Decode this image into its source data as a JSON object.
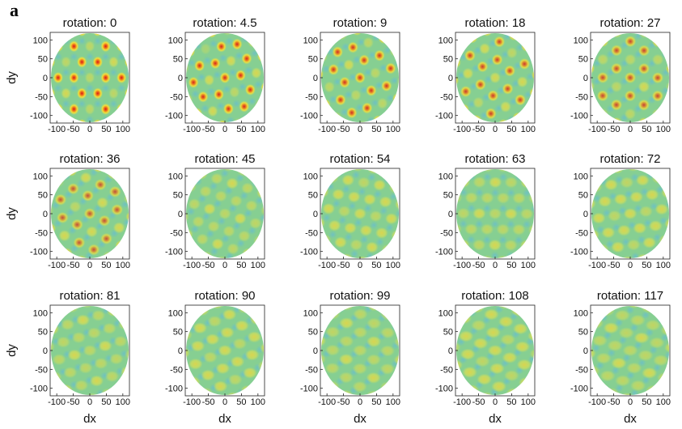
{
  "panel_label": "a",
  "chart_data": [
    {
      "type": "heatmap",
      "title": "rotation: 0",
      "ylabel": "dy",
      "xlim": [
        -120,
        120
      ],
      "ylim": [
        -120,
        120
      ],
      "xticks": [
        -100,
        -50,
        0,
        50,
        100
      ],
      "yticks": [
        -100,
        -50,
        0,
        50,
        100
      ]
    },
    {
      "type": "heatmap",
      "title": "rotation: 4.5",
      "xlim": [
        -120,
        120
      ],
      "ylim": [
        -120,
        120
      ],
      "xticks": [
        -100,
        -50,
        0,
        50,
        100
      ],
      "yticks": [
        -100,
        -50,
        0,
        50,
        100
      ]
    },
    {
      "type": "heatmap",
      "title": "rotation: 9",
      "xlim": [
        -120,
        120
      ],
      "ylim": [
        -120,
        120
      ],
      "xticks": [
        -100,
        -50,
        0,
        50,
        100
      ],
      "yticks": [
        -100,
        -50,
        0,
        50,
        100
      ]
    },
    {
      "type": "heatmap",
      "title": "rotation: 18",
      "xlim": [
        -120,
        120
      ],
      "ylim": [
        -120,
        120
      ],
      "xticks": [
        -100,
        -50,
        0,
        50,
        100
      ],
      "yticks": [
        -100,
        -50,
        0,
        50,
        100
      ]
    },
    {
      "type": "heatmap",
      "title": "rotation: 27",
      "xlim": [
        -120,
        120
      ],
      "ylim": [
        -120,
        120
      ],
      "xticks": [
        -100,
        -50,
        0,
        50,
        100
      ],
      "yticks": [
        -100,
        -50,
        0,
        50,
        100
      ]
    },
    {
      "type": "heatmap",
      "title": "rotation: 36",
      "ylabel": "dy",
      "xlim": [
        -120,
        120
      ],
      "ylim": [
        -120,
        120
      ],
      "xticks": [
        -100,
        -50,
        0,
        50,
        100
      ],
      "yticks": [
        -100,
        -50,
        0,
        50,
        100
      ]
    },
    {
      "type": "heatmap",
      "title": "rotation: 45",
      "xlim": [
        -120,
        120
      ],
      "ylim": [
        -120,
        120
      ],
      "xticks": [
        -100,
        -50,
        0,
        50,
        100
      ],
      "yticks": [
        -100,
        -50,
        0,
        50,
        100
      ]
    },
    {
      "type": "heatmap",
      "title": "rotation: 54",
      "xlim": [
        -120,
        120
      ],
      "ylim": [
        -120,
        120
      ],
      "xticks": [
        -100,
        -50,
        0,
        50,
        100
      ],
      "yticks": [
        -100,
        -50,
        0,
        50,
        100
      ]
    },
    {
      "type": "heatmap",
      "title": "rotation: 63",
      "xlim": [
        -120,
        120
      ],
      "ylim": [
        -120,
        120
      ],
      "xticks": [
        -100,
        -50,
        0,
        50,
        100
      ],
      "yticks": [
        -100,
        -50,
        0,
        50,
        100
      ]
    },
    {
      "type": "heatmap",
      "title": "rotation: 72",
      "xlim": [
        -120,
        120
      ],
      "ylim": [
        -120,
        120
      ],
      "xticks": [
        -100,
        -50,
        0,
        50,
        100
      ],
      "yticks": [
        -100,
        -50,
        0,
        50,
        100
      ]
    },
    {
      "type": "heatmap",
      "title": "rotation: 81",
      "ylabel": "dy",
      "xlabel": "dx",
      "xlim": [
        -120,
        120
      ],
      "ylim": [
        -120,
        120
      ],
      "xticks": [
        -100,
        -50,
        0,
        50,
        100
      ],
      "yticks": [
        -100,
        -50,
        0,
        50,
        100
      ]
    },
    {
      "type": "heatmap",
      "title": "rotation: 90",
      "xlabel": "dx",
      "xlim": [
        -120,
        120
      ],
      "ylim": [
        -120,
        120
      ],
      "xticks": [
        -100,
        -50,
        0,
        50,
        100
      ],
      "yticks": [
        -100,
        -50,
        0,
        50,
        100
      ]
    },
    {
      "type": "heatmap",
      "title": "rotation: 99",
      "xlabel": "dx",
      "xlim": [
        -120,
        120
      ],
      "ylim": [
        -120,
        120
      ],
      "xticks": [
        -100,
        -50,
        0,
        50,
        100
      ],
      "yticks": [
        -100,
        -50,
        0,
        50,
        100
      ]
    },
    {
      "type": "heatmap",
      "title": "rotation: 108",
      "xlabel": "dx",
      "xlim": [
        -120,
        120
      ],
      "ylim": [
        -120,
        120
      ],
      "xticks": [
        -100,
        -50,
        0,
        50,
        100
      ],
      "yticks": [
        -100,
        -50,
        0,
        50,
        100
      ]
    },
    {
      "type": "heatmap",
      "title": "rotation: 117",
      "xlabel": "dx",
      "xlim": [
        -120,
        120
      ],
      "ylim": [
        -120,
        120
      ],
      "xticks": [
        -100,
        -50,
        0,
        50,
        100
      ],
      "yticks": [
        -100,
        -50,
        0,
        50,
        100
      ]
    }
  ]
}
